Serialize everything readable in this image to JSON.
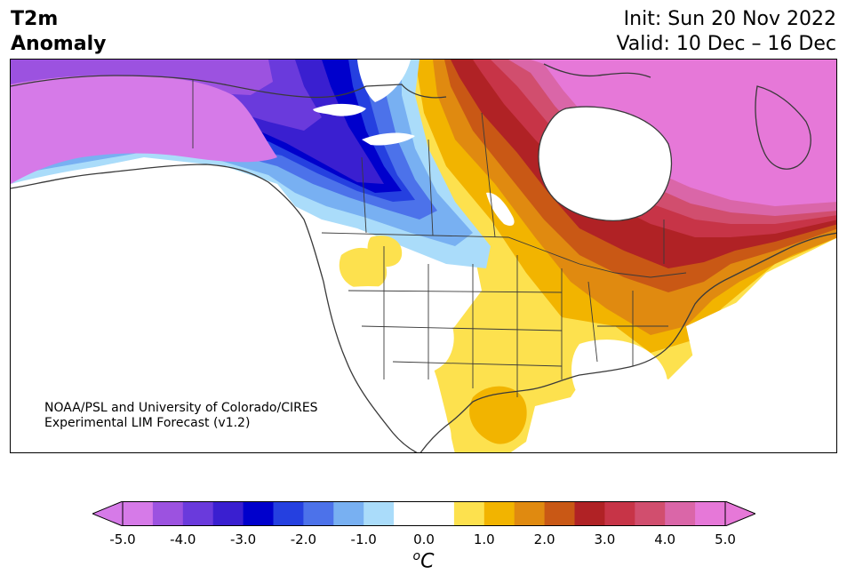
{
  "header": {
    "title_line1": "T2m",
    "title_line2": "Anomaly",
    "init": "Init: Sun 20 Nov 2022",
    "valid": "Valid: 10 Dec – 16 Dec"
  },
  "credit": {
    "line1": "NOAA/PSL and University of Colorado/CIRES",
    "line2": "Experimental LIM Forecast (v1.2)"
  },
  "colorbar": {
    "unit_sup": "o",
    "unit_main": "C",
    "ticks": [
      "-5.0",
      "-4.0",
      "-3.0",
      "-2.0",
      "-1.0",
      "0.0",
      "1.0",
      "2.0",
      "3.0",
      "4.0",
      "5.0"
    ],
    "colors": [
      "#d67ae8",
      "#9c52e0",
      "#6a3adc",
      "#3a1fd0",
      "#0000cc",
      "#2540e0",
      "#4c72ea",
      "#78b0f2",
      "#aadcfa",
      "#ffffff",
      "#ffffff",
      "#fde14e",
      "#f2b400",
      "#e08a10",
      "#c95815",
      "#b02225",
      "#c73447",
      "#d14e6e",
      "#da66a8",
      "#e678d8"
    ],
    "under_color": "#d67ae8",
    "over_color": "#e678d8"
  },
  "map": {
    "colors": {
      "purple_light": "#d67ae8",
      "purple": "#9c52e0",
      "violet": "#6a3adc",
      "indigo": "#3a1fd0",
      "blue_dark": "#0000cc",
      "blue": "#2540e0",
      "blue_mid": "#4c72ea",
      "blue_light": "#78b0f2",
      "blue_pale": "#aadcfa",
      "yellow": "#fde14e",
      "gold": "#f2b400",
      "orange": "#e08a10",
      "orange_dark": "#c95815",
      "red": "#b02225",
      "crimson": "#c73447",
      "rose": "#d14e6e",
      "pink": "#da66a8",
      "magenta": "#e678d8"
    }
  }
}
